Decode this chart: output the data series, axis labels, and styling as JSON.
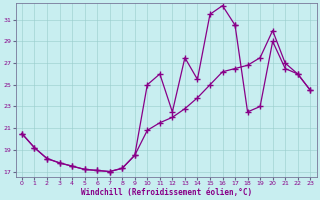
{
  "xlabel": "Windchill (Refroidissement éolien,°C)",
  "xlim": [
    -0.5,
    23.5
  ],
  "ylim": [
    16.5,
    32.5
  ],
  "xticks": [
    0,
    1,
    2,
    3,
    4,
    5,
    6,
    7,
    8,
    9,
    10,
    11,
    12,
    13,
    14,
    15,
    16,
    17,
    18,
    19,
    20,
    21,
    22,
    23
  ],
  "yticks": [
    17,
    19,
    21,
    23,
    25,
    27,
    29,
    31
  ],
  "bg_color": "#c8eef0",
  "line_color": "#880088",
  "curve1_x": [
    0,
    1,
    2,
    3,
    4,
    5,
    6,
    7,
    8,
    9,
    10,
    11,
    12,
    13,
    14,
    15,
    16,
    17
  ],
  "curve1_y": [
    20.5,
    19.2,
    18.2,
    17.8,
    17.5,
    17.2,
    17.1,
    17.0,
    17.3,
    18.5,
    25.0,
    26.0,
    22.5,
    27.5,
    25.5,
    31.5,
    32.3,
    30.5
  ],
  "curve2_x": [
    0,
    1,
    2,
    3,
    4,
    5,
    6,
    7,
    8,
    9,
    10,
    11,
    12,
    13,
    14,
    15,
    16,
    17,
    18,
    19,
    20,
    21,
    22,
    23
  ],
  "curve2_y": [
    20.5,
    19.2,
    18.2,
    17.8,
    17.5,
    17.2,
    17.1,
    17.0,
    17.3,
    18.5,
    20.8,
    21.5,
    22.0,
    22.8,
    23.8,
    25.0,
    26.2,
    26.5,
    26.8,
    27.5,
    30.0,
    27.0,
    26.0,
    24.5
  ],
  "curve3_x": [
    17,
    18,
    19,
    20,
    21,
    22,
    23
  ],
  "curve3_y": [
    30.5,
    22.5,
    23.0,
    29.0,
    26.5,
    26.0,
    24.5
  ]
}
